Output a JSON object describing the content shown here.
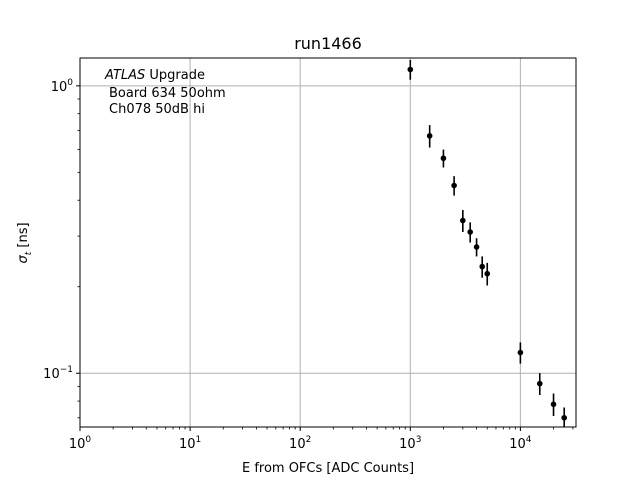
{
  "chart_data": {
    "type": "scatter",
    "title": "run1466",
    "xlabel": "E from OFCs [ADC Counts]",
    "ylabel_prefix": "σ",
    "ylabel_sub": "t",
    "ylabel_suffix": " [ns]",
    "x_scale": "log",
    "y_scale": "log",
    "xlim": [
      1,
      32000
    ],
    "ylim": [
      0.065,
      1.25
    ],
    "grid": true,
    "x_ticks": [
      {
        "value": 1,
        "base": "10",
        "exp": "0"
      },
      {
        "value": 10,
        "base": "10",
        "exp": "1"
      },
      {
        "value": 100,
        "base": "10",
        "exp": "2"
      },
      {
        "value": 1000,
        "base": "10",
        "exp": "3"
      },
      {
        "value": 10000,
        "base": "10",
        "exp": "4"
      }
    ],
    "y_ticks": [
      {
        "value": 0.1,
        "base": "10",
        "exp": "−1"
      },
      {
        "value": 1,
        "base": "10",
        "exp": "0"
      }
    ],
    "annotations": {
      "atlas": "ATLAS",
      "upgrade": " Upgrade",
      "board": "Board 634 50ohm",
      "channel": "Ch078 50dB hi"
    },
    "series": [
      {
        "marker_color": "#000000",
        "points": [
          {
            "x": 1000,
            "y": 1.14,
            "err": 0.09
          },
          {
            "x": 1500,
            "y": 0.67,
            "err": 0.06
          },
          {
            "x": 2000,
            "y": 0.56,
            "err": 0.04
          },
          {
            "x": 2500,
            "y": 0.45,
            "err": 0.035
          },
          {
            "x": 3000,
            "y": 0.34,
            "err": 0.03
          },
          {
            "x": 3500,
            "y": 0.31,
            "err": 0.025
          },
          {
            "x": 4000,
            "y": 0.275,
            "err": 0.02
          },
          {
            "x": 4500,
            "y": 0.235,
            "err": 0.02
          },
          {
            "x": 5000,
            "y": 0.222,
            "err": 0.02
          },
          {
            "x": 10000,
            "y": 0.118,
            "err": 0.01
          },
          {
            "x": 15000,
            "y": 0.092,
            "err": 0.008
          },
          {
            "x": 20000,
            "y": 0.078,
            "err": 0.007
          },
          {
            "x": 25000,
            "y": 0.07,
            "err": 0.006
          }
        ]
      }
    ]
  }
}
